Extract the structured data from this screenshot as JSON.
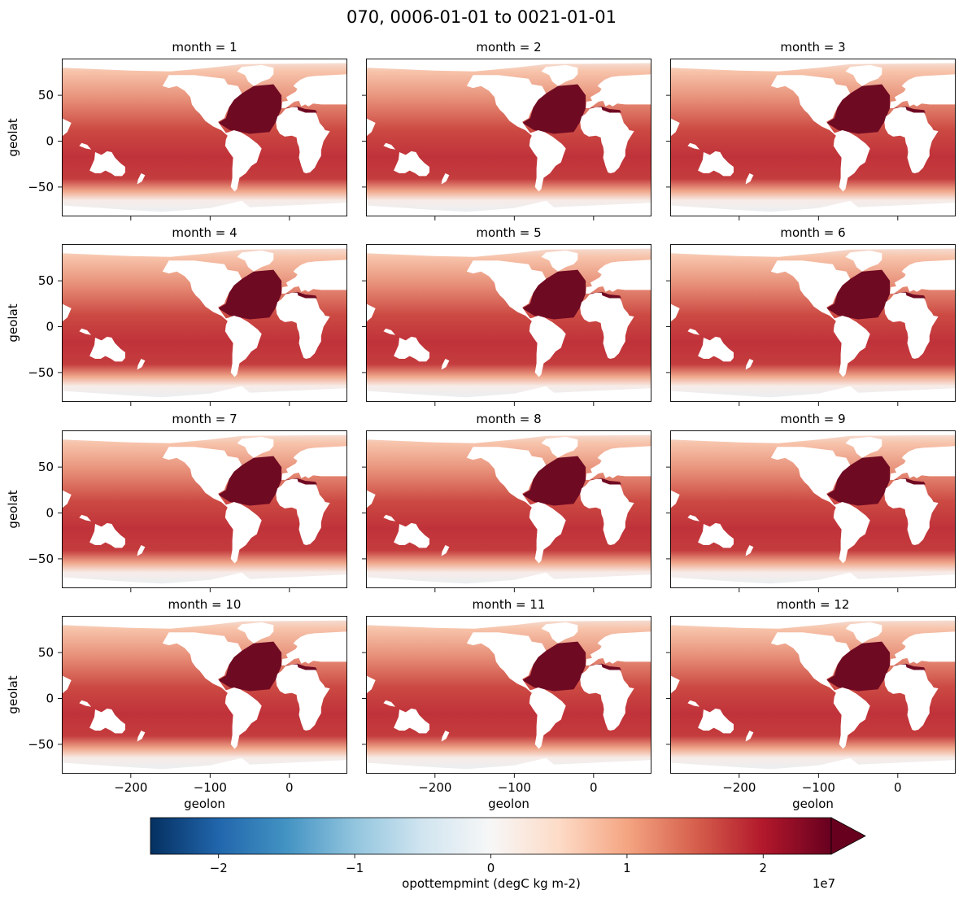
{
  "figure": {
    "title": "070, 0006-01-01 to 0021-01-01"
  },
  "colors": {
    "land": "#ffffff",
    "frame": "#000000",
    "scale": [
      "#053061",
      "#2166ac",
      "#4393c3",
      "#92c5de",
      "#d1e5f0",
      "#f7f7f7",
      "#fddbc7",
      "#f4a582",
      "#d6604d",
      "#b2182b",
      "#67001f"
    ]
  },
  "chart_data": {
    "type": "heatmap",
    "variable": "opottempmint",
    "xlabel": "geolon",
    "ylabel": "geolat",
    "xlim": [
      -287,
      73
    ],
    "ylim": [
      -82,
      90
    ],
    "xticks": [
      -200,
      -100,
      0
    ],
    "xtick_labels": [
      "−200",
      "−100",
      "0"
    ],
    "yticks": [
      50,
      0,
      -50
    ],
    "ytick_labels": [
      "50",
      "0",
      "−50"
    ],
    "panels": [
      {
        "title": "month = 1",
        "month": 1
      },
      {
        "title": "month = 2",
        "month": 2
      },
      {
        "title": "month = 3",
        "month": 3
      },
      {
        "title": "month = 4",
        "month": 4
      },
      {
        "title": "month = 5",
        "month": 5
      },
      {
        "title": "month = 6",
        "month": 6
      },
      {
        "title": "month = 7",
        "month": 7
      },
      {
        "title": "month = 8",
        "month": 8
      },
      {
        "title": "month = 9",
        "month": 9
      },
      {
        "title": "month = 10",
        "month": 10
      },
      {
        "title": "month = 11",
        "month": 11
      },
      {
        "title": "month = 12",
        "month": 12
      }
    ],
    "colorbar": {
      "label": "opottempmint (degC kg m-2)",
      "range": [
        -2.5,
        2.5
      ],
      "ticks": [
        -2,
        -1,
        0,
        1,
        2
      ],
      "tick_labels": [
        "−2",
        "−1",
        "0",
        "1",
        "2"
      ],
      "offset_label": "1e7",
      "extend": "max",
      "colormap": "RdBu_r"
    }
  }
}
